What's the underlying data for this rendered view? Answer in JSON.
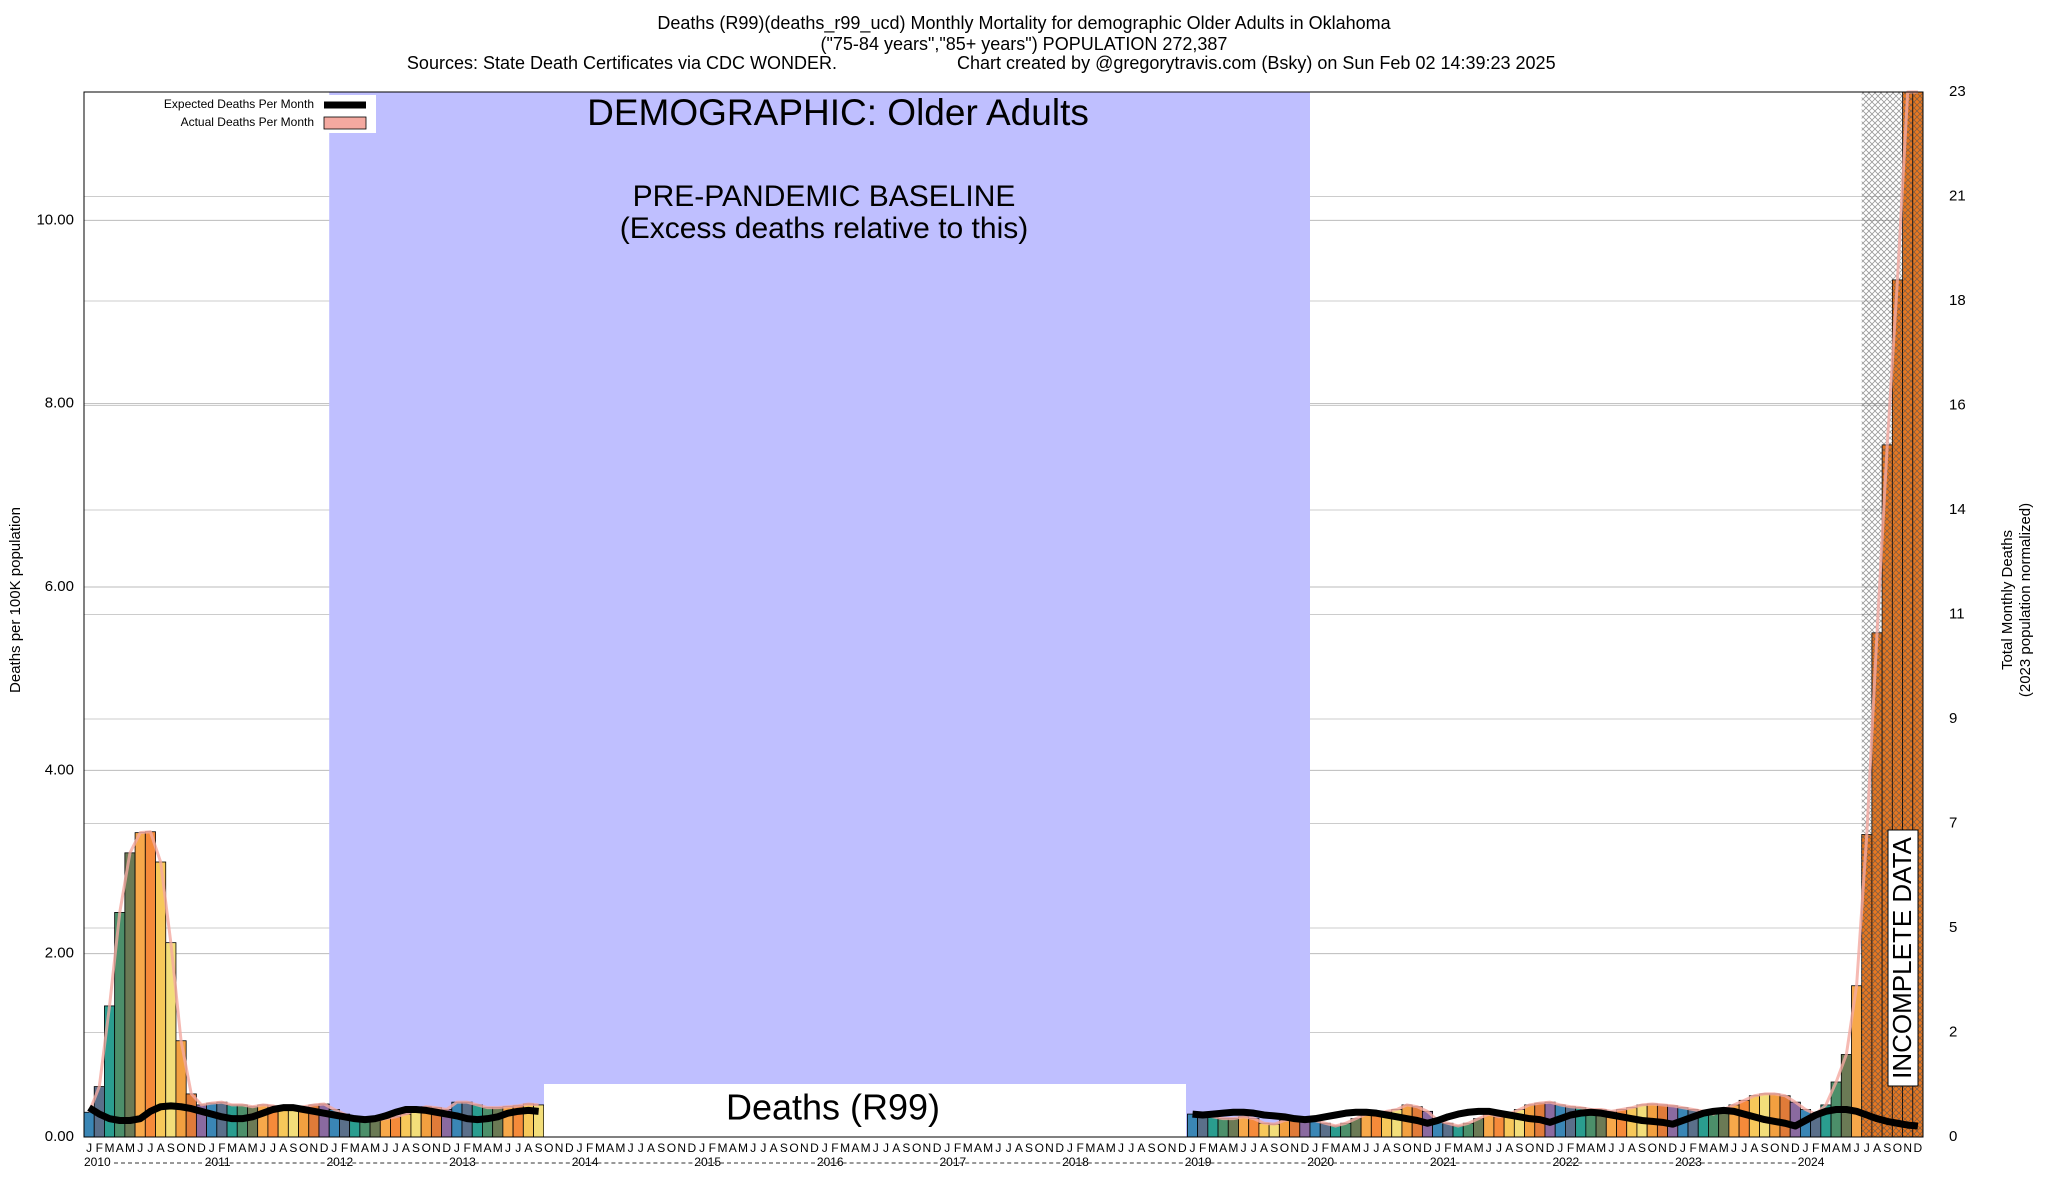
{
  "chart_data": {
    "type": "bar",
    "title": "Deaths (R99)(deaths_r99_ucd) Monthly Mortality for demographic Older Adults in Oklahoma",
    "subtitle": "(\"75-84 years\",\"85+ years\") POPULATION 272,387",
    "sources": "Sources: State Death Certificates via CDC WONDER.",
    "credit": "Chart created by @gregorytravis.com (Bsky) on Sun Feb 02 14:39:23 2025",
    "y_label": "Deaths per 100K population",
    "y2_label": "Total Monthly Deaths",
    "y2_label_note": "(2023 population normalized)",
    "annotations": {
      "demographic": "DEMOGRAPHIC: Older Adults",
      "baseline": "PRE-PANDEMIC BASELINE",
      "baseline_note": "(Excess deaths relative to this)",
      "cause": "Deaths (R99)",
      "incomplete": "INCOMPLETE DATA"
    },
    "month_labels": [
      "J",
      "F",
      "M",
      "A",
      "M",
      "J",
      "J",
      "A",
      "S",
      "O",
      "N",
      "D"
    ],
    "years": [
      "2010",
      "2011",
      "2012",
      "2013",
      "2014",
      "2015",
      "2016",
      "2017",
      "2018",
      "2019",
      "2020",
      "2021",
      "2022",
      "2023",
      "2024"
    ],
    "month_colors": [
      "#3a86b5",
      "#5a6f8a",
      "#2a9d8f",
      "#4c8f6a",
      "#6b7a55",
      "#f7a84a",
      "#f58a3a",
      "#f7c85a",
      "#f3de7a",
      "#f2a040",
      "#e07b39",
      "#8a6aa0"
    ],
    "series": [
      {
        "name": "Expected Deaths Per Month",
        "color": "#000000",
        "values": [
          0.32,
          0.25,
          0.2,
          0.18,
          0.18,
          0.2,
          0.28,
          0.33,
          0.34,
          0.33,
          0.31,
          0.28,
          0.25,
          0.22,
          0.2,
          0.2,
          0.22,
          0.26,
          0.3,
          0.32,
          0.32,
          0.3,
          0.28,
          0.26,
          0.24,
          0.22,
          0.2,
          0.19,
          0.2,
          0.23,
          0.27,
          0.3,
          0.3,
          0.29,
          0.27,
          0.25,
          0.23,
          0.2,
          0.19,
          0.2,
          0.22,
          0.26,
          0.28,
          0.29,
          0.28,
          null,
          null,
          null,
          null,
          null,
          null,
          null,
          null,
          null,
          null,
          null,
          null,
          null,
          null,
          null,
          null,
          null,
          null,
          null,
          null,
          null,
          null,
          null,
          null,
          null,
          null,
          null,
          null,
          null,
          null,
          null,
          null,
          null,
          null,
          null,
          null,
          null,
          null,
          null,
          null,
          null,
          null,
          null,
          null,
          null,
          null,
          null,
          null,
          null,
          null,
          null,
          null,
          null,
          null,
          null,
          null,
          null,
          null,
          null,
          null,
          null,
          null,
          null,
          0.25,
          0.24,
          0.25,
          0.26,
          0.27,
          0.27,
          0.26,
          0.24,
          0.23,
          0.22,
          0.2,
          0.19,
          0.2,
          0.22,
          0.24,
          0.26,
          0.27,
          0.27,
          0.26,
          0.24,
          0.22,
          0.2,
          0.18,
          0.15,
          0.18,
          0.22,
          0.25,
          0.27,
          0.28,
          0.28,
          0.26,
          0.24,
          0.22,
          0.2,
          0.19,
          0.16,
          0.2,
          0.24,
          0.26,
          0.27,
          0.26,
          0.24,
          0.22,
          0.2,
          0.18,
          0.17,
          0.16,
          0.14,
          0.18,
          0.22,
          0.26,
          0.28,
          0.29,
          0.28,
          0.25,
          0.22,
          0.19,
          0.17,
          0.15,
          0.12,
          0.18,
          0.24,
          0.28,
          0.3,
          0.3,
          0.28,
          0.24,
          0.2,
          0.17,
          0.15,
          0.13,
          0.12
        ]
      },
      {
        "name": "Actual Deaths Per Month",
        "color": "#f4a9a0",
        "values": [
          0.27,
          0.55,
          1.43,
          2.45,
          3.1,
          3.32,
          3.33,
          3.0,
          2.12,
          1.05,
          0.47,
          0.35,
          0.37,
          0.38,
          0.35,
          0.35,
          0.33,
          0.35,
          0.34,
          0.3,
          0.3,
          0.33,
          0.35,
          0.36,
          0.3,
          0.25,
          0.2,
          0.18,
          0.18,
          0.2,
          0.22,
          0.25,
          0.3,
          0.33,
          0.32,
          0.3,
          0.38,
          0.38,
          0.35,
          0.32,
          0.32,
          0.33,
          0.34,
          0.36,
          0.35,
          null,
          null,
          null,
          null,
          null,
          null,
          null,
          null,
          null,
          null,
          null,
          null,
          null,
          null,
          null,
          null,
          null,
          null,
          null,
          null,
          null,
          null,
          null,
          null,
          null,
          null,
          null,
          null,
          null,
          null,
          null,
          null,
          null,
          null,
          null,
          null,
          null,
          null,
          null,
          null,
          null,
          null,
          null,
          null,
          null,
          null,
          null,
          null,
          null,
          null,
          null,
          null,
          null,
          null,
          null,
          null,
          null,
          null,
          null,
          null,
          null,
          null,
          null,
          0.25,
          0.25,
          0.22,
          0.2,
          0.2,
          0.22,
          0.2,
          0.15,
          0.14,
          0.18,
          0.2,
          0.18,
          0.18,
          0.15,
          0.12,
          0.15,
          0.2,
          0.25,
          0.25,
          0.28,
          0.3,
          0.35,
          0.33,
          0.28,
          0.18,
          0.15,
          0.12,
          0.15,
          0.2,
          0.25,
          0.22,
          0.25,
          0.3,
          0.35,
          0.37,
          0.38,
          0.35,
          0.33,
          0.32,
          0.3,
          0.3,
          0.28,
          0.3,
          0.32,
          0.35,
          0.36,
          0.35,
          0.34,
          0.32,
          0.3,
          0.28,
          0.25,
          0.3,
          0.35,
          0.4,
          0.45,
          0.47,
          0.47,
          0.45,
          0.38,
          0.3,
          0.25,
          0.35,
          0.6,
          0.9,
          1.65,
          3.3,
          5.5,
          7.55,
          9.35,
          11.4,
          11.4
        ]
      }
    ],
    "incomplete_months": 6,
    "ylim": [
      0,
      11.4
    ],
    "yticks": [
      {
        "value": 0,
        "label": "0.00"
      },
      {
        "value": 2,
        "label": "2.00"
      },
      {
        "value": 4,
        "label": "4.00"
      },
      {
        "value": 6,
        "label": "6.00"
      },
      {
        "value": 8,
        "label": "8.00"
      },
      {
        "value": 10,
        "label": "10.00"
      }
    ],
    "y2lim": [
      0,
      23
    ],
    "y2ticks": [
      0,
      {
        "value": 2.3,
        "label": "2"
      },
      {
        "value": 4.6,
        "label": "5"
      },
      {
        "value": 6.9,
        "label": "7"
      },
      {
        "value": 9.2,
        "label": "9"
      },
      {
        "value": 11.5,
        "label": "11"
      },
      {
        "value": 13.8,
        "label": "14"
      },
      {
        "value": 16.1,
        "label": "16"
      },
      {
        "value": 18.4,
        "label": "18"
      },
      {
        "value": 20.7,
        "label": "21"
      },
      23
    ],
    "grid": true,
    "legend": "top-left"
  }
}
